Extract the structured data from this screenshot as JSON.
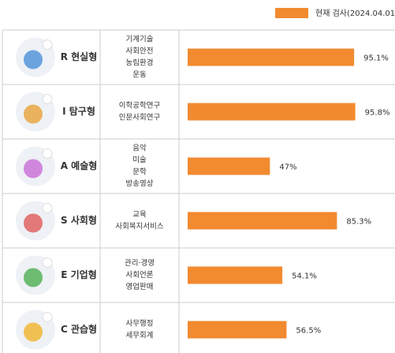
{
  "chart_data": {
    "type": "bar",
    "orientation": "horizontal",
    "categories": [
      "R 현실형",
      "I 탐구형",
      "A 예술형",
      "S 사회형",
      "E 기업형",
      "C 관습형"
    ],
    "fields": [
      [
        "기계기술",
        "사회안전",
        "농림환경",
        "운동"
      ],
      [
        "이학공학연구",
        "인문사회연구"
      ],
      [
        "음악",
        "미술",
        "문학",
        "방송영상"
      ],
      [
        "교육",
        "사회복지서비스"
      ],
      [
        "관리·경영",
        "사회언론",
        "영업판매"
      ],
      [
        "사무행정",
        "세무회계"
      ]
    ],
    "series": [
      {
        "name": "현재 검사(2024.04.01)",
        "color": "#f28a30",
        "values": [
          95.1,
          95.8,
          47,
          85.3,
          54.1,
          56.5
        ],
        "value_labels": [
          "95.1%",
          "95.8%",
          "47%",
          "85.3%",
          "54.1%",
          "56.5%"
        ]
      }
    ],
    "xlim": [
      0,
      100
    ]
  }
}
